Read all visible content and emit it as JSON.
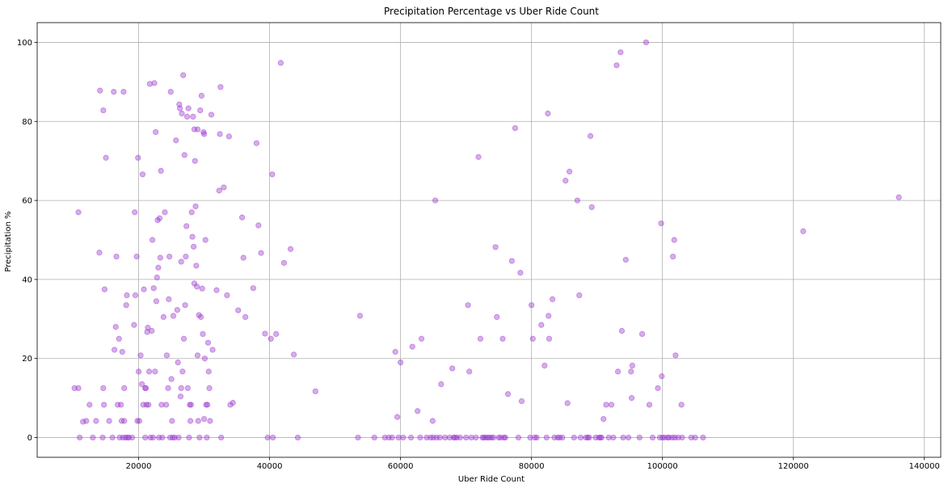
{
  "chart_data": {
    "type": "scatter",
    "title": "Precipitation Percentage vs Uber Ride Count",
    "xlabel": "Uber Ride Count",
    "ylabel": "Precipitation %",
    "xlim": [
      4500,
      142500
    ],
    "ylim": [
      -5,
      105
    ],
    "xticks": [
      20000,
      40000,
      60000,
      80000,
      100000,
      120000,
      140000
    ],
    "yticks": [
      0,
      20,
      40,
      60,
      80,
      100
    ],
    "grid": true,
    "point_color": "#9932cc",
    "point_alpha": 0.4,
    "series": [
      {
        "points": [
          [
            10200,
            12.5
          ],
          [
            10800,
            12.5
          ],
          [
            10800,
            57
          ],
          [
            11000,
            0
          ],
          [
            11500,
            4
          ],
          [
            12000,
            4.2
          ],
          [
            12500,
            8.3
          ],
          [
            13000,
            0
          ],
          [
            13500,
            4.2
          ],
          [
            14000,
            46.8
          ],
          [
            14100,
            87.8
          ],
          [
            14500,
            0
          ],
          [
            14600,
            12.5
          ],
          [
            14600,
            82.8
          ],
          [
            14700,
            8.3
          ],
          [
            14800,
            37.5
          ],
          [
            15000,
            70.8
          ],
          [
            15500,
            4.2
          ],
          [
            16000,
            0
          ],
          [
            16200,
            87.5
          ],
          [
            16300,
            22.2
          ],
          [
            16500,
            28
          ],
          [
            16600,
            45.8
          ],
          [
            16800,
            8.3
          ],
          [
            17000,
            25
          ],
          [
            17100,
            0
          ],
          [
            17300,
            8.3
          ],
          [
            17400,
            4.2
          ],
          [
            17500,
            21.7
          ],
          [
            17600,
            0
          ],
          [
            17700,
            87.5
          ],
          [
            17800,
            12.5
          ],
          [
            17800,
            4.2
          ],
          [
            18000,
            0
          ],
          [
            18100,
            33.5
          ],
          [
            18200,
            36
          ],
          [
            18300,
            0
          ],
          [
            18500,
            0
          ],
          [
            19000,
            0
          ],
          [
            19300,
            28.5
          ],
          [
            19400,
            57
          ],
          [
            19500,
            36
          ],
          [
            19700,
            45.8
          ],
          [
            19800,
            4.2
          ],
          [
            19900,
            70.8
          ],
          [
            20000,
            16.7
          ],
          [
            20100,
            4.2
          ],
          [
            20300,
            20.8
          ],
          [
            20500,
            13.5
          ],
          [
            20600,
            66.6
          ],
          [
            20700,
            8.3
          ],
          [
            20800,
            37.5
          ],
          [
            21000,
            0
          ],
          [
            21000,
            12.5
          ],
          [
            21100,
            12.5
          ],
          [
            21200,
            8.3
          ],
          [
            21300,
            26.7
          ],
          [
            21400,
            27.8
          ],
          [
            21500,
            8.3
          ],
          [
            21600,
            16.7
          ],
          [
            21700,
            89.5
          ],
          [
            21800,
            0
          ],
          [
            22000,
            27
          ],
          [
            22100,
            50
          ],
          [
            22200,
            0
          ],
          [
            22300,
            37.8
          ],
          [
            22400,
            89.7
          ],
          [
            22500,
            16.7
          ],
          [
            22600,
            77.3
          ],
          [
            22700,
            34.5
          ],
          [
            22800,
            40.5
          ],
          [
            22900,
            55
          ],
          [
            23000,
            43
          ],
          [
            23100,
            0
          ],
          [
            23200,
            55.5
          ],
          [
            23300,
            45.5
          ],
          [
            23400,
            67.5
          ],
          [
            23500,
            8.3
          ],
          [
            23600,
            0
          ],
          [
            23800,
            30.5
          ],
          [
            24000,
            57
          ],
          [
            24200,
            8.3
          ],
          [
            24300,
            20.8
          ],
          [
            24500,
            12.5
          ],
          [
            24600,
            35
          ],
          [
            24700,
            45.8
          ],
          [
            24800,
            0
          ],
          [
            24900,
            87.5
          ],
          [
            25000,
            14.8
          ],
          [
            25100,
            4.2
          ],
          [
            25200,
            0
          ],
          [
            25300,
            30.8
          ],
          [
            25500,
            0
          ],
          [
            25700,
            75.2
          ],
          [
            25900,
            32.3
          ],
          [
            26000,
            19
          ],
          [
            26100,
            0
          ],
          [
            26200,
            84.3
          ],
          [
            26300,
            83.3
          ],
          [
            26400,
            10.4
          ],
          [
            26500,
            12.5
          ],
          [
            26500,
            44.5
          ],
          [
            26600,
            82
          ],
          [
            26700,
            16.7
          ],
          [
            26800,
            91.7
          ],
          [
            26900,
            25
          ],
          [
            27000,
            71.5
          ],
          [
            27100,
            33.5
          ],
          [
            27200,
            45.8
          ],
          [
            27300,
            53.5
          ],
          [
            27400,
            81.2
          ],
          [
            27500,
            12.5
          ],
          [
            27600,
            83.3
          ],
          [
            27700,
            0
          ],
          [
            27800,
            8.3
          ],
          [
            27900,
            4.2
          ],
          [
            28000,
            8.3
          ],
          [
            28100,
            57
          ],
          [
            28200,
            50.8
          ],
          [
            28300,
            81.2
          ],
          [
            28400,
            48.3
          ],
          [
            28500,
            39
          ],
          [
            28500,
            78
          ],
          [
            28600,
            70
          ],
          [
            28700,
            58.5
          ],
          [
            28800,
            43.5
          ],
          [
            28900,
            38.2
          ],
          [
            29000,
            78
          ],
          [
            29000,
            20.8
          ],
          [
            29100,
            4.2
          ],
          [
            29200,
            31
          ],
          [
            29300,
            0
          ],
          [
            29400,
            82.8
          ],
          [
            29500,
            30.5
          ],
          [
            29600,
            86.5
          ],
          [
            29700,
            37.7
          ],
          [
            29800,
            26.2
          ],
          [
            29900,
            77.3
          ],
          [
            30000,
            4.7
          ],
          [
            30000,
            76.8
          ],
          [
            30100,
            20
          ],
          [
            30200,
            50
          ],
          [
            30300,
            8.3
          ],
          [
            30400,
            0
          ],
          [
            30500,
            8.3
          ],
          [
            30600,
            24
          ],
          [
            30700,
            16.7
          ],
          [
            30800,
            12.5
          ],
          [
            30900,
            4.2
          ],
          [
            31100,
            81.7
          ],
          [
            31300,
            22.2
          ],
          [
            31900,
            37.3
          ],
          [
            32300,
            62.5
          ],
          [
            32400,
            76.8
          ],
          [
            32500,
            88.7
          ],
          [
            32600,
            0
          ],
          [
            33000,
            63.3
          ],
          [
            33500,
            36
          ],
          [
            33800,
            76.2
          ],
          [
            34000,
            8.3
          ],
          [
            34400,
            8.8
          ],
          [
            35200,
            32.2
          ],
          [
            35800,
            55.7
          ],
          [
            36000,
            45.5
          ],
          [
            36300,
            30.5
          ],
          [
            37500,
            37.8
          ],
          [
            38000,
            74.5
          ],
          [
            38300,
            53.7
          ],
          [
            38700,
            46.7
          ],
          [
            39300,
            26.3
          ],
          [
            39700,
            0
          ],
          [
            40200,
            25
          ],
          [
            40400,
            66.6
          ],
          [
            40500,
            0
          ],
          [
            41000,
            26.2
          ],
          [
            41700,
            94.8
          ],
          [
            42200,
            44.2
          ],
          [
            43200,
            47.7
          ],
          [
            43700,
            21
          ],
          [
            44300,
            0
          ],
          [
            47000,
            11.7
          ],
          [
            53500,
            0
          ],
          [
            53800,
            30.8
          ],
          [
            56000,
            0
          ],
          [
            57600,
            0
          ],
          [
            58200,
            0
          ],
          [
            58700,
            0
          ],
          [
            59200,
            21.7
          ],
          [
            59500,
            5.2
          ],
          [
            59700,
            0
          ],
          [
            60000,
            19
          ],
          [
            60400,
            0
          ],
          [
            61600,
            0
          ],
          [
            61800,
            23
          ],
          [
            62600,
            6.7
          ],
          [
            63000,
            0
          ],
          [
            63200,
            25
          ],
          [
            64000,
            0
          ],
          [
            64600,
            0
          ],
          [
            64900,
            4.2
          ],
          [
            65000,
            0
          ],
          [
            65300,
            60
          ],
          [
            65500,
            0
          ],
          [
            66000,
            0
          ],
          [
            66200,
            13.5
          ],
          [
            66800,
            0
          ],
          [
            67500,
            0
          ],
          [
            67900,
            17.5
          ],
          [
            68100,
            0
          ],
          [
            68300,
            0
          ],
          [
            68600,
            0
          ],
          [
            69100,
            0
          ],
          [
            70000,
            0
          ],
          [
            70300,
            33.5
          ],
          [
            70500,
            16.7
          ],
          [
            70800,
            0
          ],
          [
            71500,
            0
          ],
          [
            71900,
            71
          ],
          [
            72200,
            25
          ],
          [
            72500,
            0
          ],
          [
            72700,
            0
          ],
          [
            73000,
            0
          ],
          [
            73300,
            0
          ],
          [
            73600,
            0
          ],
          [
            73900,
            0
          ],
          [
            74200,
            0
          ],
          [
            74500,
            48.2
          ],
          [
            74700,
            30.5
          ],
          [
            75000,
            0
          ],
          [
            75300,
            0
          ],
          [
            75600,
            25
          ],
          [
            75800,
            0
          ],
          [
            76000,
            0
          ],
          [
            76400,
            11
          ],
          [
            77000,
            44.7
          ],
          [
            77500,
            78.3
          ],
          [
            78000,
            0
          ],
          [
            78300,
            41.7
          ],
          [
            78500,
            9.2
          ],
          [
            79800,
            0
          ],
          [
            80000,
            33.5
          ],
          [
            80200,
            25
          ],
          [
            80500,
            0
          ],
          [
            80800,
            0
          ],
          [
            81500,
            28.5
          ],
          [
            82000,
            18.2
          ],
          [
            82300,
            0
          ],
          [
            82500,
            82
          ],
          [
            82600,
            30.8
          ],
          [
            82700,
            25
          ],
          [
            83200,
            35
          ],
          [
            83500,
            0
          ],
          [
            84000,
            0
          ],
          [
            84300,
            0
          ],
          [
            84700,
            0
          ],
          [
            85200,
            65
          ],
          [
            85500,
            8.7
          ],
          [
            85800,
            67.3
          ],
          [
            86500,
            0
          ],
          [
            87000,
            60
          ],
          [
            87300,
            36
          ],
          [
            87500,
            0
          ],
          [
            88300,
            0
          ],
          [
            88600,
            0
          ],
          [
            88800,
            0
          ],
          [
            89000,
            76.3
          ],
          [
            89200,
            58.3
          ],
          [
            89800,
            0
          ],
          [
            90300,
            0
          ],
          [
            90500,
            0
          ],
          [
            90700,
            0
          ],
          [
            91000,
            4.7
          ],
          [
            91400,
            8.3
          ],
          [
            91800,
            0
          ],
          [
            92200,
            8.3
          ],
          [
            92500,
            0
          ],
          [
            93000,
            94.2
          ],
          [
            93200,
            16.7
          ],
          [
            93600,
            97.5
          ],
          [
            93800,
            27
          ],
          [
            94000,
            0
          ],
          [
            94400,
            45
          ],
          [
            94800,
            0
          ],
          [
            95200,
            16.7
          ],
          [
            95300,
            10
          ],
          [
            95400,
            18.2
          ],
          [
            96500,
            0
          ],
          [
            96900,
            26.2
          ],
          [
            97500,
            100
          ],
          [
            98000,
            8.3
          ],
          [
            98500,
            0
          ],
          [
            99300,
            12.5
          ],
          [
            99600,
            0
          ],
          [
            99800,
            54.2
          ],
          [
            99900,
            15.5
          ],
          [
            100000,
            0
          ],
          [
            100300,
            0
          ],
          [
            100800,
            0
          ],
          [
            101000,
            0
          ],
          [
            101500,
            0
          ],
          [
            101600,
            45.8
          ],
          [
            101800,
            50
          ],
          [
            101900,
            0
          ],
          [
            102000,
            20.8
          ],
          [
            102400,
            0
          ],
          [
            102900,
            8.3
          ],
          [
            103000,
            0
          ],
          [
            104400,
            0
          ],
          [
            105000,
            0
          ],
          [
            106200,
            0
          ],
          [
            121500,
            52.2
          ],
          [
            136100,
            60.8
          ]
        ]
      }
    ]
  }
}
